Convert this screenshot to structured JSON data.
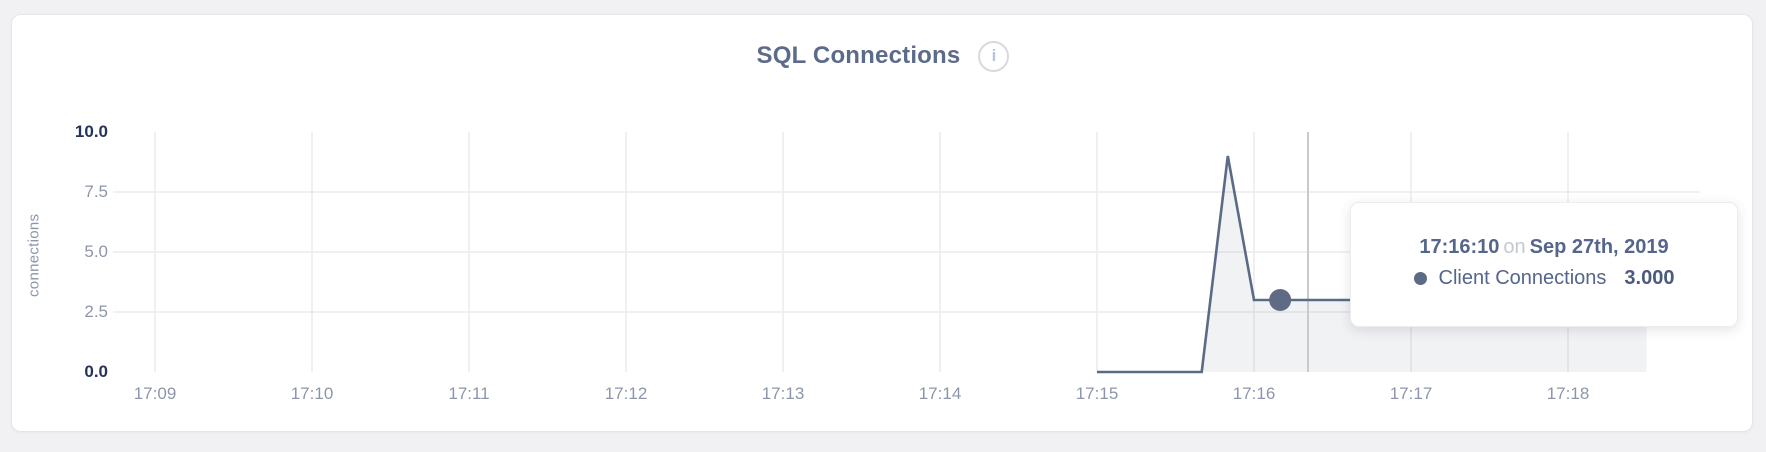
{
  "header": {
    "title": "SQL Connections",
    "info_icon": "i"
  },
  "tooltip": {
    "time": "17:16:10",
    "preposition": "on",
    "date": "Sep 27th, 2019",
    "series": "Client Connections",
    "value": "3.000"
  },
  "colors": {
    "line": "#5b6a86",
    "area_fill": "rgba(91,106,134,0.09)",
    "dot": "#5f6b84",
    "gridline": "#ececef",
    "crosshair": "#c9cace",
    "title_text": "#5c6b8a",
    "axis_minor_text": "#8d96a9",
    "axis_strong_text": "#26335b"
  },
  "chart_data": {
    "type": "area",
    "title": "SQL Connections",
    "xlabel": "",
    "ylabel": "connections",
    "ylim": [
      0,
      10
    ],
    "grid": true,
    "legend_position": "tooltip-only",
    "x_ticks": [
      "17:09",
      "17:10",
      "17:11",
      "17:12",
      "17:13",
      "17:14",
      "17:15",
      "17:16",
      "17:17",
      "17:18"
    ],
    "y_ticks": [
      {
        "label": "0.0",
        "value": 0
      },
      {
        "label": "2.5",
        "value": 2.5
      },
      {
        "label": "5.0",
        "value": 5
      },
      {
        "label": "7.5",
        "value": 7.5
      },
      {
        "label": "10.0",
        "value": 10
      }
    ],
    "series": [
      {
        "name": "Client Connections",
        "points": [
          {
            "time": "17:15:00",
            "value": 0
          },
          {
            "time": "17:15:10",
            "value": 0
          },
          {
            "time": "17:15:20",
            "value": 0
          },
          {
            "time": "17:15:30",
            "value": 0
          },
          {
            "time": "17:15:40",
            "value": 0
          },
          {
            "time": "17:15:50",
            "value": 9
          },
          {
            "time": "17:16:00",
            "value": 3
          },
          {
            "time": "17:16:10",
            "value": 3
          },
          {
            "time": "17:16:20",
            "value": 3
          },
          {
            "time": "17:16:30",
            "value": 3
          },
          {
            "time": "17:16:40",
            "value": 3
          },
          {
            "time": "17:16:50",
            "value": 3
          },
          {
            "time": "17:17:00",
            "value": 3
          },
          {
            "time": "17:17:10",
            "value": 3
          },
          {
            "time": "17:17:20",
            "value": 3
          },
          {
            "time": "17:17:30",
            "value": 3
          },
          {
            "time": "17:17:40",
            "value": 3
          },
          {
            "time": "17:17:50",
            "value": 3
          },
          {
            "time": "17:18:00",
            "value": 3
          },
          {
            "time": "17:18:10",
            "value": 3
          },
          {
            "time": "17:18:20",
            "value": 3
          },
          {
            "time": "17:18:30",
            "value": 3
          }
        ]
      }
    ],
    "hovered_point": {
      "time": "17:16:10",
      "value": 3,
      "series": "Client Connections"
    }
  }
}
